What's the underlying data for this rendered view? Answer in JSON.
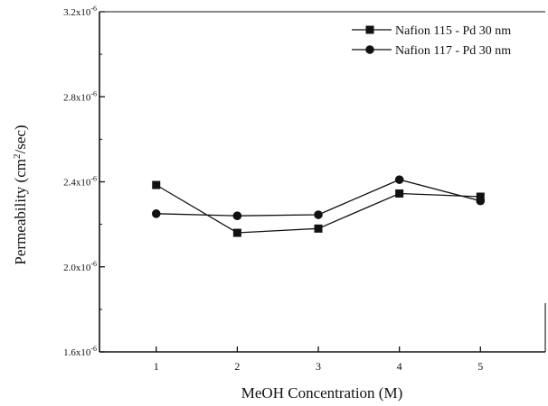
{
  "chart_data": {
    "type": "line",
    "xlabel": "MeOH Concentration (M)",
    "ylabel": {
      "pre": "Permeability (cm",
      "sup": "2",
      "post": "/sec)"
    },
    "xlim": [
      0.3,
      5.8
    ],
    "ylim": [
      1.6e-06,
      3.2e-06
    ],
    "x_ticks": [
      "1",
      "2",
      "3",
      "4",
      "5"
    ],
    "y_ticks": [
      {
        "value": 1.6e-06,
        "mantissa": "1.6x10",
        "exp": "-6"
      },
      {
        "value": 2e-06,
        "mantissa": "2.0x10",
        "exp": "-6"
      },
      {
        "value": 2.4e-06,
        "mantissa": "2.4x10",
        "exp": "-6"
      },
      {
        "value": 2.8e-06,
        "mantissa": "2.8x10",
        "exp": "-6"
      },
      {
        "value": 3.2e-06,
        "mantissa": "3.2x10",
        "exp": "-6"
      }
    ],
    "grid": false,
    "legend_position": "top-right",
    "series": [
      {
        "name": "Nafion 115 - Pd 30 nm",
        "marker": "square",
        "x": [
          1,
          2,
          3,
          4,
          5
        ],
        "y": [
          2.385e-06,
          2.16e-06,
          2.18e-06,
          2.345e-06,
          2.33e-06
        ]
      },
      {
        "name": "Nafion 117 - Pd 30 nm",
        "marker": "circle",
        "x": [
          1,
          2,
          3,
          4,
          5
        ],
        "y": [
          2.25e-06,
          2.24e-06,
          2.245e-06,
          2.41e-06,
          2.31e-06
        ]
      }
    ]
  }
}
